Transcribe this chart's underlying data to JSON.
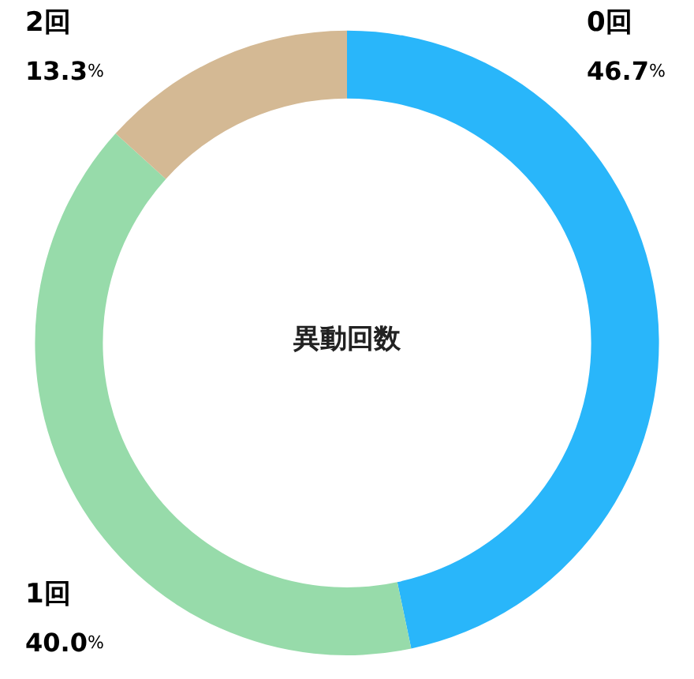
{
  "chart_data": {
    "type": "donut",
    "title": "異動回数",
    "categories": [
      "0回",
      "1回",
      "2回"
    ],
    "values": [
      46.7,
      40.0,
      13.3
    ],
    "colors": [
      "#29b6fa",
      "#97dbaa",
      "#d4b994"
    ],
    "value_labels": [
      "46.7%",
      "40.0%",
      "13.3%"
    ],
    "legend": false
  }
}
